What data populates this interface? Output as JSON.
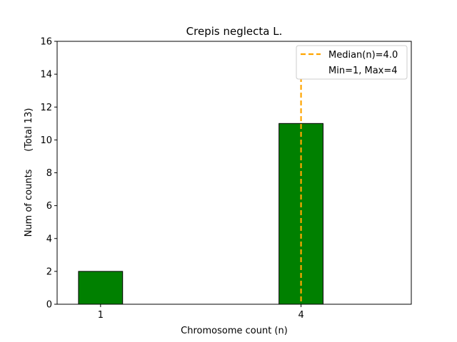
{
  "chart_data": {
    "type": "bar",
    "title": "Crepis neglecta L.",
    "xlabel": "Chromosome count (n)",
    "ylabel": "Num of counts      (Total 13)",
    "categories": [
      1,
      4
    ],
    "values": [
      2,
      11
    ],
    "bar_color": "#008000",
    "xlim": [
      0.35,
      5.65
    ],
    "ylim": [
      0,
      16
    ],
    "x_ticks": [
      1,
      4
    ],
    "y_ticks": [
      0,
      2,
      4,
      6,
      8,
      10,
      12,
      14,
      16
    ],
    "grid": false,
    "median": {
      "value": 4.0,
      "color": "#ffa500"
    },
    "legend": {
      "placement": "top-right",
      "entries": [
        "Median(n)=4.0",
        "Min=1, Max=4"
      ]
    }
  }
}
